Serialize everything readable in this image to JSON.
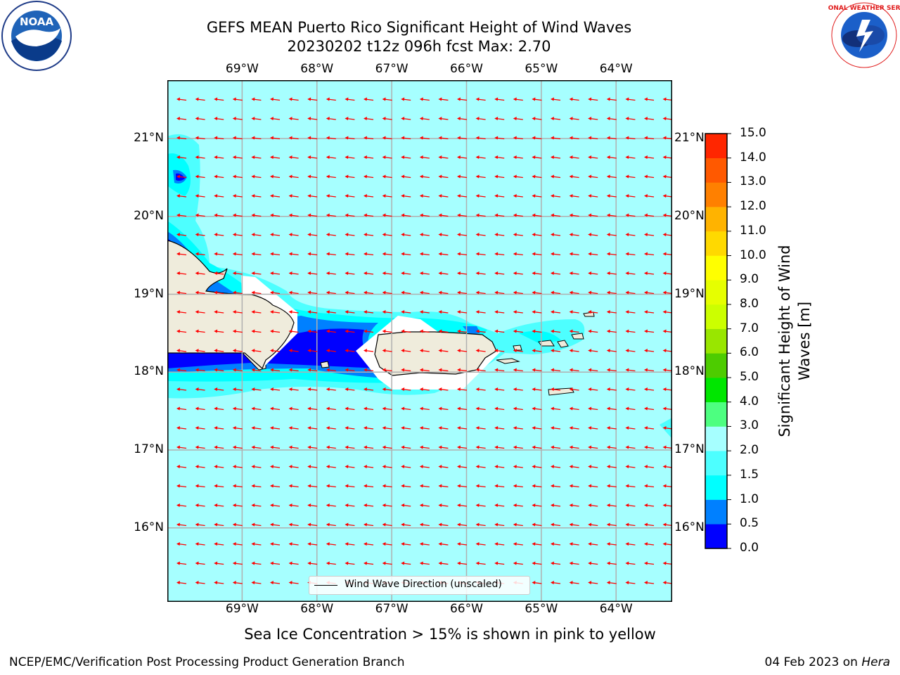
{
  "title": {
    "line1": "GEFS MEAN Puerto Rico Significant Height of Wind Waves",
    "line2": "20230202 t12z 096h fcst   Max: 2.70"
  },
  "logos": {
    "left": {
      "icon": "noaa-logo",
      "text": "NOAA"
    },
    "right": {
      "icon": "national-weather-service-logo",
      "text": "NATIONAL WEATHER SERVICE"
    }
  },
  "map": {
    "lon_ticks": [
      "69°W",
      "68°W",
      "67°W",
      "66°W",
      "65°W",
      "64°W"
    ],
    "lat_ticks": [
      "21°N",
      "20°N",
      "19°N",
      "18°N",
      "17°N",
      "16°N"
    ],
    "lon_values": [
      -69,
      -68,
      -67,
      -66,
      -65,
      -64
    ],
    "lat_values": [
      21,
      20,
      19,
      18,
      17,
      16
    ],
    "lon_range": [
      -70,
      -63.25
    ],
    "lat_range": [
      15.05,
      21.75
    ],
    "arrow_direction": "westward",
    "colors": {
      "ocean_2_3": "#a6ffff",
      "ocean_1_5_2": "#4dffff",
      "ocean_1_1_5": "#00ffff",
      "ocean_0_5_1": "#0080ff",
      "ocean_0_0_5": "#0000ff",
      "land": "#efecdc",
      "arrow": "#ff0000",
      "grid": "#b0b0b0"
    }
  },
  "legend": {
    "label": "Wind Wave Direction (unscaled)"
  },
  "colorbar": {
    "title": "Significant Height of Wind Waves [m]",
    "tick_labels": [
      "15.0",
      "14.0",
      "13.0",
      "12.0",
      "11.0",
      "10.0",
      "9.0",
      "8.0",
      "7.0",
      "6.0",
      "5.0",
      "4.0",
      "3.0",
      "2.0",
      "1.5",
      "1.0",
      "0.5",
      "0.0"
    ],
    "levels": [
      0.0,
      0.5,
      1.0,
      1.5,
      2.0,
      3.0,
      4.0,
      5.0,
      6.0,
      7.0,
      8.0,
      9.0,
      10.0,
      11.0,
      12.0,
      13.0,
      14.0,
      15.0
    ],
    "colors": [
      "#0000ff",
      "#0080ff",
      "#00ffff",
      "#4dffff",
      "#a6ffff",
      "#4dff80",
      "#00e600",
      "#4dcc00",
      "#99e600",
      "#ccff00",
      "#e6ff00",
      "#ffff00",
      "#ffd900",
      "#ffb300",
      "#ff8000",
      "#ff5900",
      "#ff2600"
    ]
  },
  "bottom_note": "Sea Ice Concentration > 15% is shown in pink to yellow",
  "footer": {
    "left": "NCEP/EMC/Verification Post Processing Product Generation Branch",
    "right_prefix": "04 Feb 2023 on ",
    "right_host": "Hera"
  }
}
